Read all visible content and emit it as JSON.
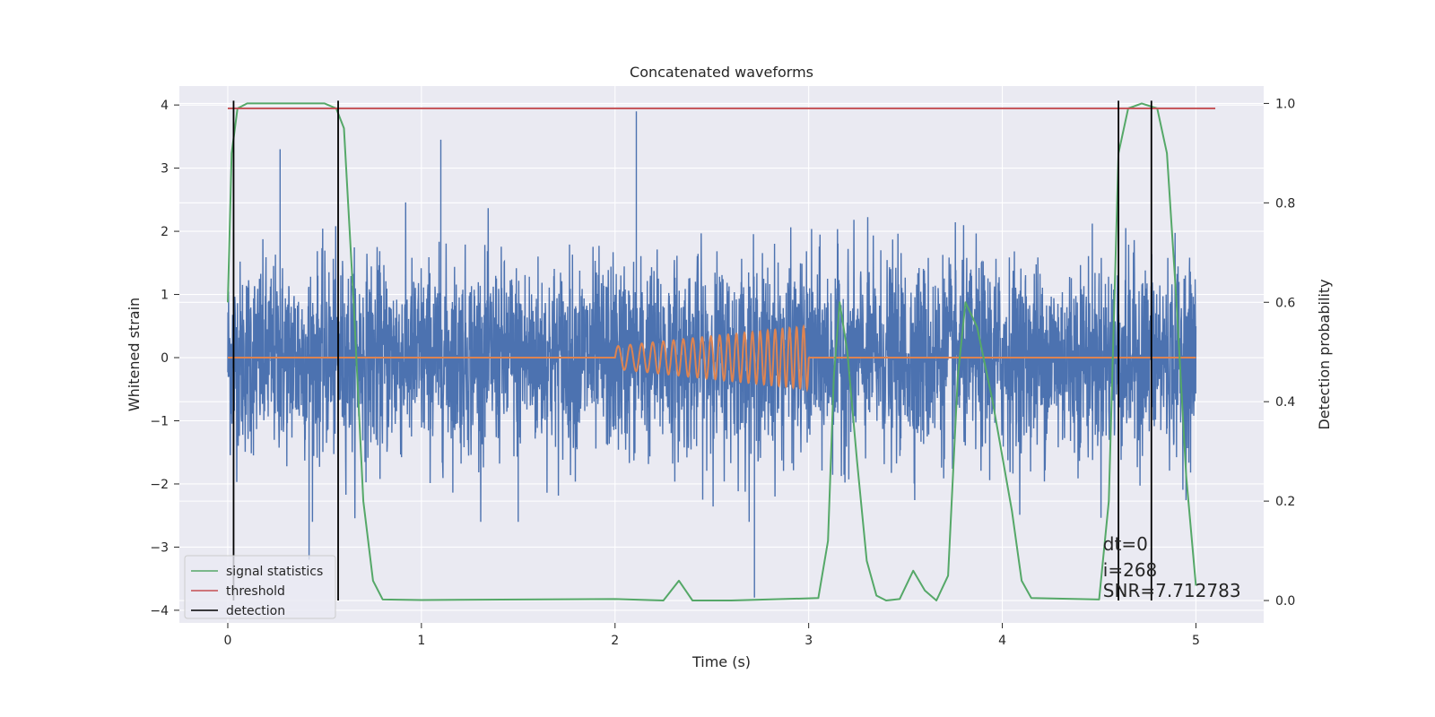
{
  "chart_data": {
    "type": "line",
    "title": "Concatenated waveforms",
    "xlabel": "Time (s)",
    "ylabel": "Whitened strain",
    "y2label": "Detection probability",
    "xlim": [
      -0.25,
      5.35
    ],
    "ylim": [
      -4.2,
      4.3
    ],
    "y2lim": [
      -0.045,
      1.035
    ],
    "x_ticks": [
      0,
      1,
      2,
      3,
      4,
      5
    ],
    "y_ticks": [
      -4,
      -3,
      -2,
      -1,
      0,
      1,
      2,
      3,
      4
    ],
    "y2_ticks": [
      0.0,
      0.2,
      0.4,
      0.6,
      0.8,
      1.0
    ],
    "y2_tick_labels": [
      "0.0",
      "0.2",
      "0.4",
      "0.6",
      "0.8",
      "1.0"
    ],
    "grid": true,
    "legend_placement": "lower-left",
    "colors": {
      "whitened_strain": "#4c72b0",
      "injected_waveform": "#dd8452",
      "signal_statistics": "#55a868",
      "threshold": "#c44e52",
      "detection": "#000000",
      "axes_background": "#eaeaf2",
      "grid": "#ffffff"
    },
    "series": [
      {
        "name": "",
        "role": "whitened_strain",
        "axis": "left",
        "x_range": [
          0,
          5
        ],
        "typical_range": [
          -1.8,
          2.3
        ],
        "extremes": [
          [
            0.27,
            3.3
          ],
          [
            1.1,
            3.45
          ],
          [
            2.11,
            3.9
          ],
          [
            2.72,
            -3.8
          ],
          [
            0.42,
            -3.2
          ],
          [
            1.5,
            -2.6
          ]
        ]
      },
      {
        "name": "",
        "role": "injected_waveform",
        "axis": "left",
        "x": [
          0,
          2,
          3,
          5
        ],
        "y": [
          0,
          0,
          0,
          0
        ],
        "chirp": {
          "start": 2.0,
          "end": 3.0,
          "amp_start": 0.18,
          "amp_end": 0.5,
          "cycles": 22
        }
      },
      {
        "name": "signal statistics",
        "axis": "right",
        "x": [
          0.0,
          0.02,
          0.05,
          0.1,
          0.5,
          0.56,
          0.6,
          0.65,
          0.7,
          0.75,
          0.8,
          1.0,
          2.0,
          2.25,
          2.33,
          2.4,
          2.6,
          3.05,
          3.1,
          3.13,
          3.16,
          3.2,
          3.25,
          3.3,
          3.35,
          3.4,
          3.47,
          3.54,
          3.6,
          3.66,
          3.72,
          3.77,
          3.81,
          3.87,
          3.95,
          4.05,
          4.1,
          4.15,
          4.5,
          4.55,
          4.6,
          4.65,
          4.72,
          4.8,
          4.85,
          4.9,
          4.95,
          5.0
        ],
        "y": [
          0.6,
          0.9,
          0.99,
          1.0,
          1.0,
          0.99,
          0.95,
          0.6,
          0.2,
          0.04,
          0.002,
          0.001,
          0.003,
          0.0,
          0.04,
          0.0,
          0.0,
          0.005,
          0.12,
          0.45,
          0.6,
          0.5,
          0.28,
          0.08,
          0.01,
          0.0,
          0.003,
          0.06,
          0.02,
          0.0,
          0.05,
          0.45,
          0.6,
          0.55,
          0.4,
          0.18,
          0.04,
          0.005,
          0.002,
          0.2,
          0.9,
          0.99,
          1.0,
          0.99,
          0.9,
          0.6,
          0.25,
          0.03
        ]
      },
      {
        "name": "threshold",
        "axis": "right",
        "x": [
          0,
          5.1
        ],
        "y": [
          0.99,
          0.99
        ]
      }
    ],
    "detections": {
      "name": "detection",
      "x": [
        0.03,
        0.57,
        4.6,
        4.77
      ]
    },
    "annotations": [
      "dt=0",
      "i=268",
      "SNR=7.712783"
    ],
    "legend": [
      "signal statistics",
      "threshold",
      "detection"
    ]
  }
}
